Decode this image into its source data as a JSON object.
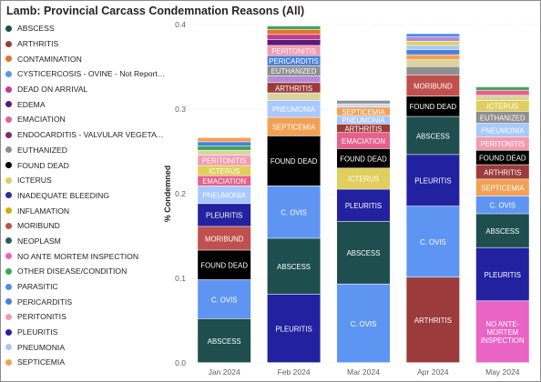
{
  "title": "Lamb: Provincial Carcass Condemnation Reasons (All)",
  "legend": [
    {
      "label": "ABSCESS",
      "color": "#1f4e4f"
    },
    {
      "label": "ARTHRITIS",
      "color": "#9c3b3b"
    },
    {
      "label": "CONTAMINATION",
      "color": "#e3742b"
    },
    {
      "label": "CYSTICERCOSIS - OVINE - Not Reporta...",
      "color": "#5f95e8"
    },
    {
      "label": "DEAD ON ARRIVAL",
      "color": "#c23b8f"
    },
    {
      "label": "EDEMA",
      "color": "#5b1a7a"
    },
    {
      "label": "EMACIATION",
      "color": "#e6608b"
    },
    {
      "label": "ENDOCARDITIS - VALVULAR VEGETATI...",
      "color": "#7d2b6f"
    },
    {
      "label": "EUTHANIZED",
      "color": "#8f8f8f"
    },
    {
      "label": "FOUND DEAD",
      "color": "#000000"
    },
    {
      "label": "ICTERUS",
      "color": "#e0cf5c"
    },
    {
      "label": "INADEQUATE BLEEDING",
      "color": "#2d2f99"
    },
    {
      "label": "INFLAMATION",
      "color": "#d1ac00"
    },
    {
      "label": "MORIBUND",
      "color": "#c0504d"
    },
    {
      "label": "NEOPLASM",
      "color": "#2a5e5a"
    },
    {
      "label": "NO ANTE MORTEM INSPECTION",
      "color": "#e964c4"
    },
    {
      "label": "OTHER DISEASE/CONDITION",
      "color": "#3fa55b"
    },
    {
      "label": "PARASITIC",
      "color": "#4f8ee6"
    },
    {
      "label": "PERICARDITIS",
      "color": "#4a7fe0"
    },
    {
      "label": "PERITONITIS",
      "color": "#f29bb0"
    },
    {
      "label": "PLEURITIS",
      "color": "#2222a0"
    },
    {
      "label": "PNEUMONIA",
      "color": "#a8c8ff"
    },
    {
      "label": "SEPTICEMIA",
      "color": "#f2a154"
    }
  ],
  "colors": {
    "ABSCESS": "#1f4e4f",
    "C. OVIS": "#5f95f2",
    "FOUND DEAD": "#000000",
    "MORIBUND": "#c0504d",
    "PLEURITIS": "#2222a0",
    "PNEUMONIA": "#a8c8ff",
    "EMACIATION": "#e6608b",
    "ICTERUS": "#e0cf5c",
    "PERITONITIS": "#f29bb0",
    "SEPTICEMIA": "#f2a154",
    "ARTHRITIS": "#9c3b3b",
    "EUTHANIZED": "#8f8f8f",
    "PERICARDITIS": "#4a7fe0",
    "NO ANTE-MORTEM INSPECTION": "#e964c4",
    "OTHER DISEASE/CONDITION": "#3fa55b",
    "CONTAMINATION": "#e3742b",
    "EDEMA": "#5b1a7a",
    "DEAD ON ARRIVAL": "#c23b8f",
    "INFLAMATION": "#d1ac00",
    "PARASITIC": "#4f8ee6",
    "MISC1": "#b48cd6",
    "MISC2": "#d9d3a0",
    "MISC3": "#c5d8f5"
  },
  "chart_data": {
    "type": "bar",
    "stacked": true,
    "ylabel": "% Condemned",
    "ylim": [
      0,
      0.4
    ],
    "yticks": [
      "0.0",
      "0.1",
      "0.2",
      "0.3",
      "0.4"
    ],
    "categories": [
      "Jan 2024",
      "Feb 2024",
      "Mar 2024",
      "Apr 2024",
      "May 2024"
    ],
    "bars": [
      {
        "category": "Jan 2024",
        "segments": [
          {
            "name": "ABSCESS",
            "value": 0.052,
            "label": "ABSCESS"
          },
          {
            "name": "C. OVIS",
            "value": 0.046,
            "label": "C. OVIS"
          },
          {
            "name": "FOUND DEAD",
            "value": 0.035,
            "label": "FOUND DEAD"
          },
          {
            "name": "MORIBUND",
            "value": 0.028,
            "label": "MORIBUND"
          },
          {
            "name": "PLEURITIS",
            "value": 0.027,
            "label": "PLEURITIS"
          },
          {
            "name": "PNEUMONIA",
            "value": 0.021,
            "label": "PNEUMONIA"
          },
          {
            "name": "EMACIATION",
            "value": 0.012,
            "label": "EMACIATION"
          },
          {
            "name": "ICTERUS",
            "value": 0.012,
            "label": "ICTERUS"
          },
          {
            "name": "PERITONITIS",
            "value": 0.012,
            "label": "PERITONITIS"
          },
          {
            "name": "MISC2",
            "value": 0.006,
            "label": ""
          },
          {
            "name": "OTHER DISEASE/CONDITION",
            "value": 0.005,
            "label": ""
          },
          {
            "name": "PERICARDITIS",
            "value": 0.005,
            "label": ""
          },
          {
            "name": "SEPTICEMIA",
            "value": 0.005,
            "label": ""
          }
        ]
      },
      {
        "category": "Feb 2024",
        "segments": [
          {
            "name": "PLEURITIS",
            "value": 0.081,
            "label": "PLEURITIS"
          },
          {
            "name": "ABSCESS",
            "value": 0.066,
            "label": "ABSCESS"
          },
          {
            "name": "C. OVIS",
            "value": 0.062,
            "label": "C. OVIS"
          },
          {
            "name": "FOUND DEAD",
            "value": 0.059,
            "label": "FOUND DEAD"
          },
          {
            "name": "SEPTICEMIA",
            "value": 0.022,
            "label": "SEPTICEMIA"
          },
          {
            "name": "PNEUMONIA",
            "value": 0.02,
            "label": "PNEUMONIA"
          },
          {
            "name": "MISC2",
            "value": 0.009,
            "label": ""
          },
          {
            "name": "ARTHRITIS",
            "value": 0.012,
            "label": "ARTHRITIS"
          },
          {
            "name": "MISC1",
            "value": 0.008,
            "label": ""
          },
          {
            "name": "EUTHANIZED",
            "value": 0.012,
            "label": "EUTHANIZED"
          },
          {
            "name": "PERICARDITIS",
            "value": 0.012,
            "label": "PERICARDITIS"
          },
          {
            "name": "PERITONITIS",
            "value": 0.012,
            "label": "PERITONITIS"
          },
          {
            "name": "EDEMA",
            "value": 0.007,
            "label": ""
          },
          {
            "name": "DEAD ON ARRIVAL",
            "value": 0.006,
            "label": ""
          },
          {
            "name": "CONTAMINATION",
            "value": 0.006,
            "label": ""
          },
          {
            "name": "OTHER DISEASE/CONDITION",
            "value": 0.004,
            "label": ""
          }
        ]
      },
      {
        "category": "Mar 2024",
        "segments": [
          {
            "name": "C. OVIS",
            "value": 0.093,
            "label": "C. OVIS"
          },
          {
            "name": "ABSCESS",
            "value": 0.074,
            "label": "ABSCESS"
          },
          {
            "name": "PLEURITIS",
            "value": 0.038,
            "label": "PLEURITIS"
          },
          {
            "name": "ICTERUS",
            "value": 0.025,
            "label": "ICTERUS"
          },
          {
            "name": "FOUND DEAD",
            "value": 0.023,
            "label": "FOUND DEAD"
          },
          {
            "name": "EMACIATION",
            "value": 0.019,
            "label": "EMACIATION"
          },
          {
            "name": "ARTHRITIS",
            "value": 0.01,
            "label": "ARTHRITIS"
          },
          {
            "name": "PNEUMONIA",
            "value": 0.01,
            "label": "PNEUMONIA"
          },
          {
            "name": "SEPTICEMIA",
            "value": 0.01,
            "label": "SEPTICEMIA"
          },
          {
            "name": "MISC3",
            "value": 0.004,
            "label": ""
          },
          {
            "name": "EUTHANIZED",
            "value": 0.004,
            "label": ""
          }
        ]
      },
      {
        "category": "Apr 2024",
        "segments": [
          {
            "name": "ARTHRITIS",
            "value": 0.101,
            "label": "ARTHRITIS"
          },
          {
            "name": "C. OVIS",
            "value": 0.084,
            "label": "C. OVIS"
          },
          {
            "name": "PLEURITIS",
            "value": 0.061,
            "label": "PLEURITIS"
          },
          {
            "name": "ABSCESS",
            "value": 0.045,
            "label": "ABSCESS"
          },
          {
            "name": "FOUND DEAD",
            "value": 0.024,
            "label": "FOUND DEAD"
          },
          {
            "name": "MORIBUND",
            "value": 0.025,
            "label": "MORIBUND"
          },
          {
            "name": "EUTHANIZED",
            "value": 0.01,
            "label": ""
          },
          {
            "name": "MISC2",
            "value": 0.008,
            "label": ""
          },
          {
            "name": "SEPTICEMIA",
            "value": 0.006,
            "label": ""
          },
          {
            "name": "PERICARDITIS",
            "value": 0.006,
            "label": ""
          },
          {
            "name": "PNEUMONIA",
            "value": 0.005,
            "label": ""
          },
          {
            "name": "ICTERUS",
            "value": 0.005,
            "label": ""
          },
          {
            "name": "MISC1",
            "value": 0.005,
            "label": ""
          },
          {
            "name": "PARASITIC",
            "value": 0.004,
            "label": ""
          }
        ]
      },
      {
        "category": "May 2024",
        "segments": [
          {
            "name": "NO ANTE-MORTEM INSPECTION",
            "value": 0.073,
            "label": "NO ANTE-MORTEM INSPECTION"
          },
          {
            "name": "PLEURITIS",
            "value": 0.063,
            "label": "PLEURITIS"
          },
          {
            "name": "ABSCESS",
            "value": 0.04,
            "label": "ABSCESS"
          },
          {
            "name": "C. OVIS",
            "value": 0.021,
            "label": "C. OVIS"
          },
          {
            "name": "SEPTICEMIA",
            "value": 0.02,
            "label": "SEPTICEMIA"
          },
          {
            "name": "ARTHRITIS",
            "value": 0.017,
            "label": "ARTHRITIS"
          },
          {
            "name": "FOUND DEAD",
            "value": 0.017,
            "label": "FOUND DEAD"
          },
          {
            "name": "PERITONITIS",
            "value": 0.016,
            "label": "PERITONITIS"
          },
          {
            "name": "PNEUMONIA",
            "value": 0.016,
            "label": "PNEUMONIA"
          },
          {
            "name": "EUTHANIZED",
            "value": 0.014,
            "label": "EUTHANIZED"
          },
          {
            "name": "ICTERUS",
            "value": 0.013,
            "label": "ICTERUS"
          },
          {
            "name": "MISC2",
            "value": 0.006,
            "label": ""
          },
          {
            "name": "EMACIATION",
            "value": 0.006,
            "label": ""
          },
          {
            "name": "OTHER DISEASE/CONDITION",
            "value": 0.004,
            "label": ""
          }
        ]
      }
    ]
  }
}
